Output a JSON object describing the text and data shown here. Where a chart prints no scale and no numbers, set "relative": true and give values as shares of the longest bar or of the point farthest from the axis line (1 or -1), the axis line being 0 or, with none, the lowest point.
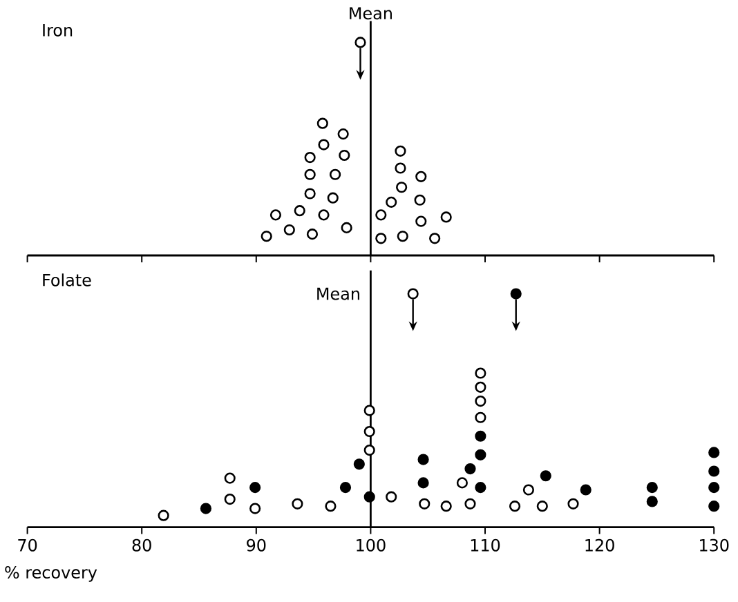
{
  "chart_data": [
    {
      "type": "scatter",
      "title": "Iron",
      "relative": true,
      "tick_labels": false,
      "xlim": [
        70,
        130
      ],
      "xticks": [
        {
          "value": 70,
          "label": null
        },
        {
          "value": 80,
          "label": null
        },
        {
          "value": 90,
          "label": null
        },
        {
          "value": 100,
          "label": null
        },
        {
          "value": 110,
          "label": null
        },
        {
          "value": 120,
          "label": null
        },
        {
          "value": 130,
          "label": null
        }
      ],
      "ref_lines": [
        {
          "axis": "x",
          "value": 100,
          "label": "Mean"
        }
      ],
      "series": [
        {
          "color": "#ffffff",
          "x": [
            90.9,
            92.9,
            91.7,
            93.8,
            94.9,
            95.9,
            97.9,
            94.7,
            96.7,
            94.7,
            96.9,
            94.7,
            97.7,
            95.9,
            97.6,
            95.8,
            100.9,
            102.8,
            105.6,
            100.9,
            101.8,
            102.7,
            104.3,
            104.4,
            106.6,
            102.6,
            104.4,
            102.6
          ],
          "values": [
            0.09,
            0.12,
            0.19,
            0.21,
            0.1,
            0.19,
            0.13,
            0.29,
            0.27,
            0.38,
            0.38,
            0.46,
            0.47,
            0.52,
            0.57,
            0.62,
            0.08,
            0.09,
            0.08,
            0.19,
            0.25,
            0.32,
            0.26,
            0.16,
            0.18,
            0.41,
            0.37,
            0.49
          ]
        },
        {
          "color": "#ffffff",
          "x": [
            99.1
          ],
          "values": [
            1
          ]
        }
      ]
    },
    {
      "type": "scatter",
      "title": "Folate",
      "xlabel": "% recovery",
      "relative": true,
      "tick_labels": "x",
      "xlim": [
        70,
        130
      ],
      "xticks": [
        70,
        80,
        90,
        100,
        110,
        120,
        130
      ],
      "ref_lines": [
        {
          "axis": "x",
          "value": 100,
          "label": "Mean"
        }
      ],
      "series": [
        {
          "color": "#ffffff",
          "x": [
            81.9,
            87.7,
            87.7,
            89.9,
            93.6,
            96.5,
            99.9,
            99.9,
            99.9,
            101.8,
            104.7,
            106.6,
            108.7,
            108.0,
            109.6,
            109.6,
            109.6,
            109.6,
            112.6,
            113.8,
            115.0,
            117.7
          ],
          "values": [
            0.05,
            0.12,
            0.21,
            0.08,
            0.1,
            0.09,
            0.33,
            0.41,
            0.5,
            0.13,
            0.1,
            0.09,
            0.1,
            0.19,
            0.47,
            0.54,
            0.6,
            0.66,
            0.09,
            0.16,
            0.09,
            0.1
          ]
        },
        {
          "color": "#000000",
          "x": [
            85.6,
            89.9,
            97.8,
            99.0,
            99.9,
            104.6,
            104.6,
            108.7,
            109.6,
            109.6,
            109.6,
            115.3,
            118.8,
            124.6,
            124.6,
            130.0,
            130.0,
            130.0,
            130.0
          ],
          "values": [
            0.08,
            0.17,
            0.17,
            0.27,
            0.13,
            0.29,
            0.19,
            0.25,
            0.17,
            0.31,
            0.39,
            0.22,
            0.16,
            0.17,
            0.11,
            0.32,
            0.24,
            0.17,
            0.09
          ]
        },
        {
          "color": "#ffffff",
          "x": [
            103.7
          ],
          "values": [
            1
          ]
        },
        {
          "color": "#000000",
          "x": [
            112.7
          ],
          "values": [
            1
          ]
        }
      ]
    }
  ]
}
